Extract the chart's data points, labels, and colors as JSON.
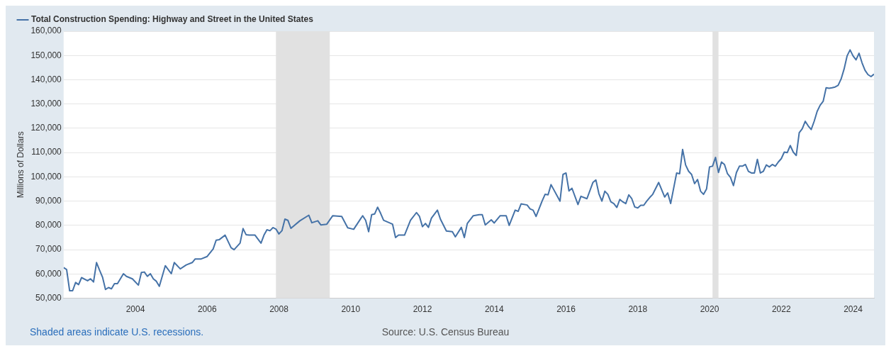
{
  "chart_data": {
    "type": "line",
    "ylabel": "Millions of Dollars",
    "legend": "top left",
    "series": [
      {
        "name": "Total Construction Spending: Highway and Street in the United States",
        "color": "#4572a7",
        "x": [
          "2002-01",
          "2002-02",
          "2002-03",
          "2002-04",
          "2002-05",
          "2002-06",
          "2002-07",
          "2002-09",
          "2002-10",
          "2002-11",
          "2002-12",
          "2003-01",
          "2003-02",
          "2003-03",
          "2003-04",
          "2003-05",
          "2003-06",
          "2003-07",
          "2003-09",
          "2003-10",
          "2003-12",
          "2004-02",
          "2004-03",
          "2004-04",
          "2004-05",
          "2004-06",
          "2004-07",
          "2004-08",
          "2004-09",
          "2004-11",
          "2005-01",
          "2005-02",
          "2005-04",
          "2005-06",
          "2005-08",
          "2005-09",
          "2005-11",
          "2006-01",
          "2006-03",
          "2006-04",
          "2006-05",
          "2006-07",
          "2006-09",
          "2006-10",
          "2006-12",
          "2007-01",
          "2007-02",
          "2007-03",
          "2007-05",
          "2007-07",
          "2007-08",
          "2007-09",
          "2007-10",
          "2007-11",
          "2007-12",
          "2008-01",
          "2008-02",
          "2008-03",
          "2008-04",
          "2008-05",
          "2008-08",
          "2008-11",
          "2008-12",
          "2009-02",
          "2009-03",
          "2009-05",
          "2009-07",
          "2009-10",
          "2009-12",
          "2010-02",
          "2010-05",
          "2010-06",
          "2010-07",
          "2010-08",
          "2010-09",
          "2010-10",
          "2010-11",
          "2010-12",
          "2011-03",
          "2011-04",
          "2011-05",
          "2011-07",
          "2011-09",
          "2011-11",
          "2011-12",
          "2012-01",
          "2012-02",
          "2012-03",
          "2012-04",
          "2012-06",
          "2012-07",
          "2012-09",
          "2012-11",
          "2012-12",
          "2013-02",
          "2013-03",
          "2013-04",
          "2013-06",
          "2013-08",
          "2013-09",
          "2013-10",
          "2013-12",
          "2014-01",
          "2014-03",
          "2014-05",
          "2014-06",
          "2014-08",
          "2014-09",
          "2014-10",
          "2014-12",
          "2015-01",
          "2015-02",
          "2015-03",
          "2015-05",
          "2015-06",
          "2015-07",
          "2015-08",
          "2015-11",
          "2015-12",
          "2016-01",
          "2016-02",
          "2016-03",
          "2016-05",
          "2016-06",
          "2016-08",
          "2016-10",
          "2016-11",
          "2016-12",
          "2017-01",
          "2017-02",
          "2017-03",
          "2017-04",
          "2017-05",
          "2017-06",
          "2017-07",
          "2017-08",
          "2017-09",
          "2017-10",
          "2017-11",
          "2017-12",
          "2018-01",
          "2018-02",
          "2018-03",
          "2018-04",
          "2018-05",
          "2018-06",
          "2018-08",
          "2018-10",
          "2018-11",
          "2018-12",
          "2019-02",
          "2019-03",
          "2019-04",
          "2019-05",
          "2019-06",
          "2019-07",
          "2019-08",
          "2019-09",
          "2019-10",
          "2019-11",
          "2019-12",
          "2020-01",
          "2020-02",
          "2020-03",
          "2020-04",
          "2020-05",
          "2020-06",
          "2020-07",
          "2020-08",
          "2020-09",
          "2020-10",
          "2020-11",
          "2020-12",
          "2021-01",
          "2021-02",
          "2021-03",
          "2021-04",
          "2021-05",
          "2021-06",
          "2021-07",
          "2021-08",
          "2021-09",
          "2021-10",
          "2021-11",
          "2021-12",
          "2022-01",
          "2022-02",
          "2022-03",
          "2022-04",
          "2022-05",
          "2022-06",
          "2022-07",
          "2022-08",
          "2022-09",
          "2022-10",
          "2022-11",
          "2022-12",
          "2023-01",
          "2023-02",
          "2023-03",
          "2023-04",
          "2023-05",
          "2023-06",
          "2023-07",
          "2023-08",
          "2023-09",
          "2023-10",
          "2023-11",
          "2023-12",
          "2024-01",
          "2024-02",
          "2024-03",
          "2024-04",
          "2024-05",
          "2024-06",
          "2024-07",
          "2024-08"
        ],
        "values": [
          62600,
          61800,
          53100,
          53100,
          56500,
          55600,
          58500,
          57200,
          58000,
          56700,
          64700,
          61600,
          58700,
          53600,
          54400,
          53900,
          56000,
          56000,
          60100,
          59000,
          58000,
          55400,
          60600,
          60800,
          59000,
          60100,
          58000,
          57000,
          54900,
          63400,
          60100,
          64700,
          62100,
          63700,
          64700,
          66200,
          66200,
          67200,
          70300,
          73900,
          74100,
          76000,
          70800,
          70000,
          72700,
          78700,
          76200,
          76000,
          76000,
          72700,
          76000,
          78200,
          77800,
          79100,
          78500,
          76500,
          77800,
          82600,
          82100,
          78800,
          81900,
          84200,
          81100,
          81900,
          80200,
          80500,
          84000,
          83700,
          79000,
          78400,
          84000,
          82100,
          77400,
          84400,
          84700,
          87500,
          85000,
          82100,
          80500,
          75000,
          76000,
          76000,
          82100,
          85300,
          83700,
          79500,
          80800,
          79200,
          83000,
          86300,
          82600,
          77700,
          77400,
          75300,
          79200,
          75000,
          80800,
          84000,
          84400,
          84400,
          80200,
          82300,
          81000,
          84000,
          84000,
          80000,
          86300,
          85800,
          88900,
          88400,
          86800,
          86300,
          83700,
          90000,
          92800,
          92600,
          96800,
          90000,
          101000,
          101600,
          94200,
          95300,
          88600,
          92000,
          91000,
          97700,
          98700,
          93100,
          90000,
          94100,
          92800,
          89700,
          89000,
          87400,
          90700,
          89700,
          89000,
          92600,
          91000,
          87600,
          87200,
          88300,
          88300,
          90000,
          91500,
          92800,
          97700,
          91700,
          93400,
          89000,
          101600,
          101300,
          111300,
          104900,
          102300,
          101000,
          97200,
          98900,
          94100,
          92800,
          95000,
          104100,
          104400,
          108000,
          101800,
          106100,
          105100,
          101300,
          99800,
          96400,
          101800,
          104400,
          104400,
          105100,
          102300,
          101600,
          101600,
          107200,
          101600,
          102300,
          104900,
          104100,
          105100,
          104400,
          106100,
          107500,
          110200,
          110000,
          112900,
          110200,
          108800,
          118200,
          119800,
          122900,
          121000,
          119500,
          122900,
          127000,
          129500,
          131100,
          136700,
          136500,
          136700,
          137000,
          137700,
          140300,
          144400,
          149800,
          152300,
          149800,
          148200,
          150900,
          147000,
          143900,
          142100,
          141300,
          142300
        ]
      }
    ],
    "xlim": [
      "2002-01",
      "2024-08"
    ],
    "xticks": [
      "2004",
      "2006",
      "2008",
      "2010",
      "2012",
      "2014",
      "2016",
      "2018",
      "2020",
      "2022",
      "2024"
    ],
    "ylim": [
      50000,
      160000
    ],
    "yticks": [
      {
        "value": 50000,
        "label": "50,000"
      },
      {
        "value": 60000,
        "label": "60,000"
      },
      {
        "value": 70000,
        "label": "70,000"
      },
      {
        "value": 80000,
        "label": "80,000"
      },
      {
        "value": 90000,
        "label": "90,000"
      },
      {
        "value": 100000,
        "label": "100,000"
      },
      {
        "value": 110000,
        "label": "110,000"
      },
      {
        "value": 120000,
        "label": "120,000"
      },
      {
        "value": 130000,
        "label": "130,000"
      },
      {
        "value": 140000,
        "label": "140,000"
      },
      {
        "value": 150000,
        "label": "150,000"
      },
      {
        "value": 160000,
        "label": "160,000"
      }
    ],
    "grid": "y",
    "marker": "none",
    "line_style": "solid",
    "bands": [
      {
        "axis": "x",
        "from": "2007-12",
        "to": "2009-06",
        "color": "#e1e1e1"
      },
      {
        "axis": "x",
        "from": "2020-02",
        "to": "2020-04",
        "color": "#e1e1e1"
      }
    ],
    "annotations": [
      "Shaded areas indicate U.S. recessions.",
      "Source: U.S. Census Bureau"
    ]
  }
}
